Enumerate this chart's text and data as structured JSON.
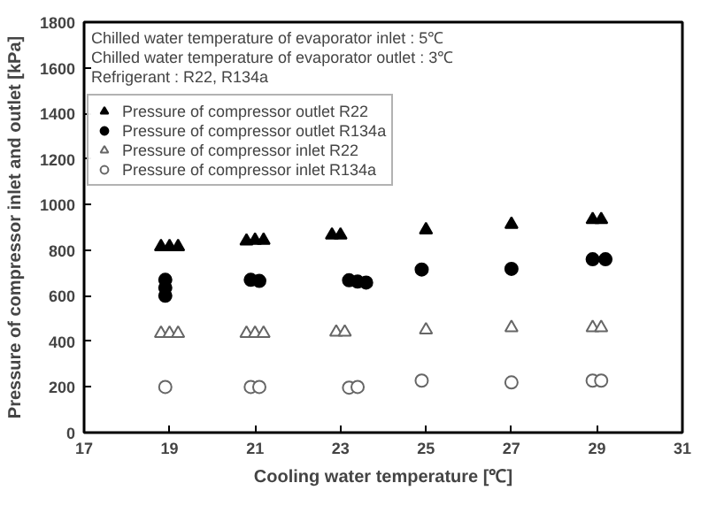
{
  "chart_data": {
    "type": "scatter",
    "xlabel": "Cooling water temperature [℃]",
    "ylabel": "Pressure of compressor inlet and outlet [kPa]",
    "annotations": [
      "Chilled water temperature of evaporator inlet : 5℃",
      "Chilled water temperature of evaporator outlet : 3℃",
      "Refrigerant : R22, R134a"
    ],
    "xlim": [
      17,
      31
    ],
    "xticks": [
      17,
      19,
      21,
      23,
      25,
      27,
      29,
      31
    ],
    "ylim": [
      0,
      1800
    ],
    "yticks": [
      0,
      200,
      400,
      600,
      800,
      1000,
      1200,
      1400,
      1600,
      1800
    ],
    "grid": false,
    "legend": "top left",
    "series": [
      {
        "name": "Pressure of compressor outlet R22",
        "color": "#000000",
        "marker": "triangle",
        "x": [
          18.8,
          19.0,
          19.2,
          20.8,
          21.0,
          21.2,
          22.8,
          23.0,
          25.0,
          27.0,
          28.9,
          29.1
        ],
        "values": [
          815,
          815,
          815,
          840,
          843,
          843,
          866,
          866,
          889,
          913,
          934,
          934
        ]
      },
      {
        "name": "Pressure of compressor outlet R134a",
        "color": "#000000",
        "marker": "circle",
        "x": [
          18.9,
          18.9,
          18.9,
          20.9,
          21.1,
          23.2,
          23.4,
          23.6,
          24.9,
          27.0,
          28.9,
          29.2
        ],
        "values": [
          670,
          635,
          600,
          670,
          665,
          668,
          662,
          658,
          715,
          718,
          760,
          760
        ]
      },
      {
        "name": "Pressure of compressor inlet R22",
        "color": "#666666",
        "marker": "triangle_open",
        "x": [
          18.8,
          19.0,
          19.2,
          20.8,
          21.0,
          21.2,
          22.9,
          23.1,
          25.0,
          27.0,
          28.9,
          29.1
        ],
        "values": [
          435,
          435,
          435,
          435,
          435,
          435,
          440,
          440,
          450,
          460,
          460,
          460
        ]
      },
      {
        "name": "Pressure of compressor inlet R134a",
        "color": "#666666",
        "marker": "circle_open",
        "x": [
          18.9,
          20.9,
          21.1,
          23.2,
          23.4,
          24.9,
          27.0,
          28.9,
          29.1
        ],
        "values": [
          200,
          200,
          200,
          197,
          200,
          228,
          220,
          228,
          228
        ]
      }
    ]
  }
}
